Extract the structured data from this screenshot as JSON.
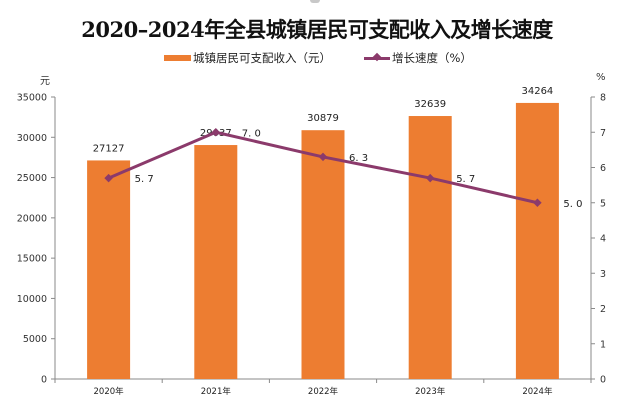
{
  "chart_data": {
    "type": "bar",
    "title": "2020–2024年全县城镇居民可支配收入及增长速度",
    "categories": [
      "2020年",
      "2021年",
      "2022年",
      "2023年",
      "2024年"
    ],
    "series": [
      {
        "name": "城镇居民可支配收入（元）",
        "type": "bar",
        "axis": "left",
        "color": "#ED7D31",
        "values": [
          27127,
          29037,
          30879,
          32639,
          34264
        ],
        "data_labels": [
          "27127",
          "29037",
          "30879",
          "32639",
          "34264"
        ]
      },
      {
        "name": "增长速度（%）",
        "type": "line",
        "axis": "right",
        "color": "#8B3A6B",
        "values": [
          5.7,
          7.0,
          6.3,
          5.7,
          5.0
        ],
        "data_labels": [
          "5. 7",
          "7. 0",
          "6. 3",
          "5. 7",
          "5. 0"
        ]
      }
    ],
    "y_left": {
      "label": "元",
      "ylim": [
        0,
        35000
      ],
      "ticks": [
        "0",
        "5000",
        "10000",
        "15000",
        "20000",
        "25000",
        "30000",
        "35000"
      ]
    },
    "y_right": {
      "label": "%",
      "ylim": [
        0,
        8
      ],
      "ticks": [
        "0",
        "1",
        "2",
        "3",
        "4",
        "5",
        "6",
        "7",
        "8"
      ]
    },
    "grid": false,
    "legend": "top-center"
  }
}
